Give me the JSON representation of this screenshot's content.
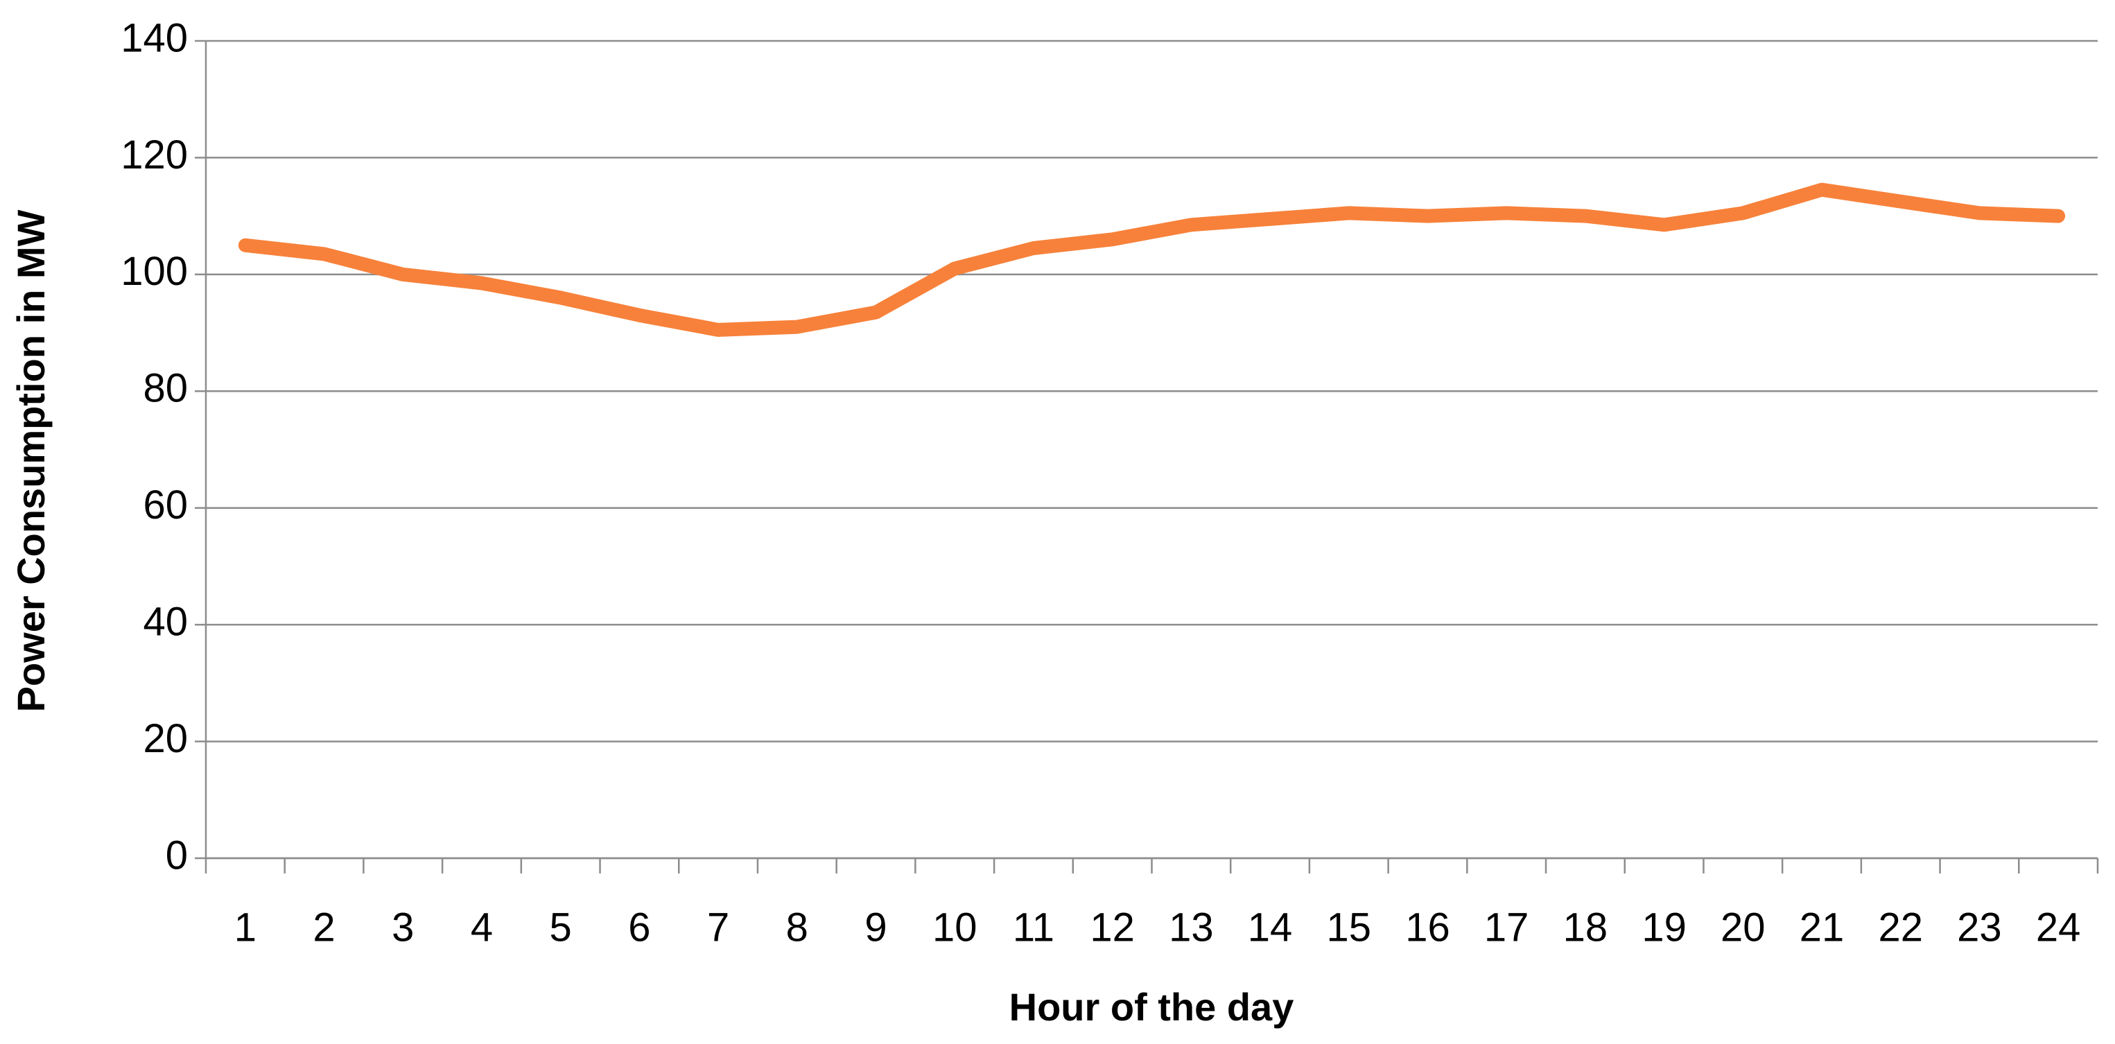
{
  "chart_data": {
    "type": "line",
    "x_label": "Hour of the day",
    "y_label": "Power Consumption in MW",
    "categories": [
      "1",
      "2",
      "3",
      "4",
      "5",
      "6",
      "7",
      "8",
      "9",
      "10",
      "11",
      "12",
      "13",
      "14",
      "15",
      "16",
      "17",
      "18",
      "19",
      "20",
      "21",
      "22",
      "23",
      "24"
    ],
    "values": [
      105,
      103.5,
      100,
      98.5,
      96,
      93,
      90.5,
      91,
      93.5,
      101,
      104.5,
      106,
      108.5,
      109.5,
      110.5,
      110,
      110.5,
      110,
      108.5,
      110.5,
      114.5,
      112.5,
      110.5,
      110
    ],
    "color": "#f7813a",
    "ylim": [
      0,
      140
    ],
    "yticks": [
      0,
      20,
      40,
      60,
      80,
      100,
      120,
      140
    ],
    "grid": true
  }
}
